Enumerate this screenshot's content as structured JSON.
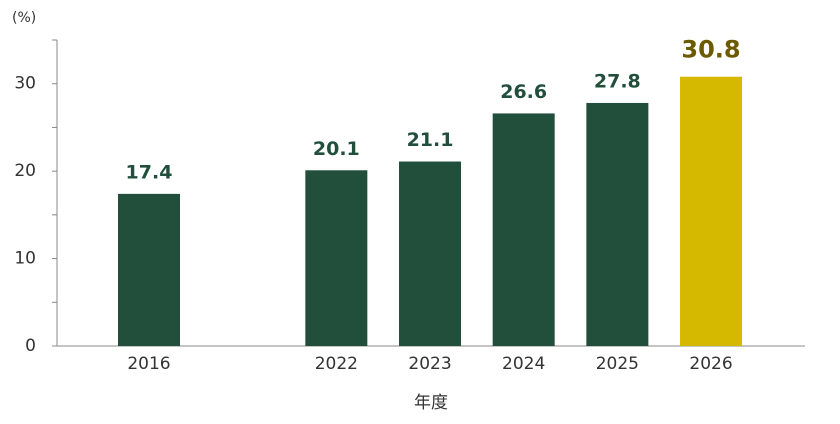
{
  "chart_data": {
    "type": "bar",
    "y_unit_label": "(%)",
    "x_label": "年度",
    "categories": [
      "2016",
      null,
      "2022",
      "2023",
      "2024",
      "2025",
      "2026"
    ],
    "values": [
      17.4,
      null,
      20.1,
      21.1,
      26.6,
      27.8,
      30.8
    ],
    "colors": [
      "#214f3c",
      null,
      "#214f3c",
      "#214f3c",
      "#214f3c",
      "#214f3c",
      "#d5b900"
    ],
    "label_colors": [
      "#214f3c",
      null,
      "#214f3c",
      "#214f3c",
      "#214f3c",
      "#214f3c",
      "#6b5a00"
    ],
    "ylim": [
      0,
      35
    ],
    "yticks": [
      0,
      10,
      20,
      30
    ],
    "minor_yticks": [
      5,
      15,
      25,
      35
    ],
    "grid": false
  }
}
